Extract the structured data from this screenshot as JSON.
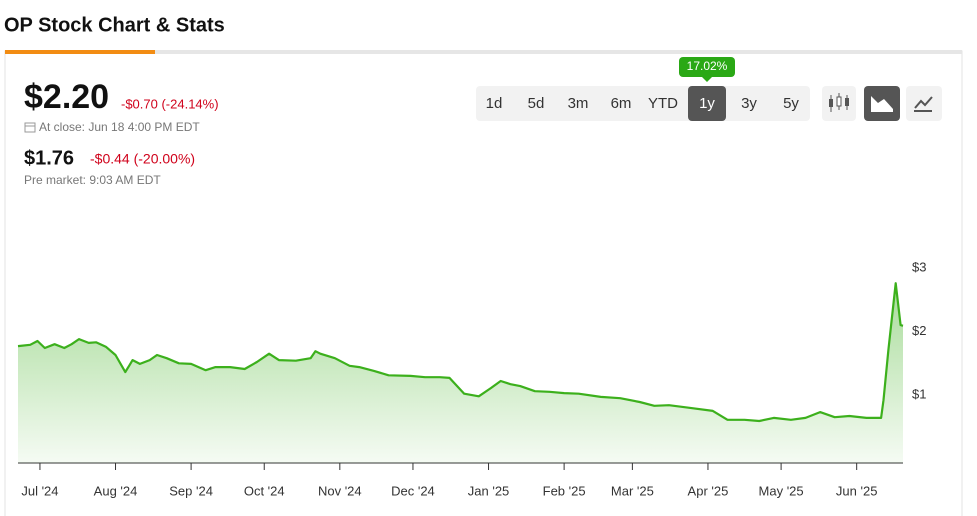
{
  "page": {
    "title": "OP Stock Chart & Stats",
    "price": "$2.20",
    "change": "-$0.70 (-24.14%)",
    "close_label": "At close: Jun 18 4:00 PM EDT",
    "pre_price": "$1.76",
    "pre_change": "-$0.44 (-20.00%)",
    "pre_label": "Pre market: 9:03 AM EDT",
    "ranges": [
      "1d",
      "5d",
      "3m",
      "6m",
      "YTD",
      "1y",
      "3y",
      "5y"
    ],
    "selected_range_index": 5,
    "range_badge": "17.02%"
  },
  "chart_data": {
    "type": "area",
    "color": "#3cb01c",
    "x": [
      -9,
      -4,
      -1,
      2,
      6,
      10,
      13,
      16,
      20,
      23,
      27,
      31,
      35,
      38,
      41,
      45,
      48,
      52,
      57,
      62,
      68,
      72,
      78,
      84,
      89,
      94,
      98,
      105,
      111,
      113,
      115,
      121,
      127,
      131,
      137,
      143,
      152,
      158,
      164,
      168,
      174,
      180,
      185,
      189,
      193,
      197,
      203,
      209,
      215,
      221,
      230,
      238,
      246,
      252,
      258,
      266,
      276,
      282,
      289,
      295,
      301,
      308,
      314,
      320,
      326,
      332,
      339,
      345,
      346,
      348,
      351,
      353,
      354
    ],
    "values": [
      1.77,
      1.79,
      1.85,
      1.74,
      1.8,
      1.74,
      1.8,
      1.88,
      1.82,
      1.83,
      1.76,
      1.63,
      1.36,
      1.55,
      1.49,
      1.55,
      1.63,
      1.58,
      1.5,
      1.49,
      1.39,
      1.44,
      1.44,
      1.41,
      1.52,
      1.65,
      1.55,
      1.54,
      1.58,
      1.69,
      1.65,
      1.58,
      1.46,
      1.44,
      1.38,
      1.31,
      1.3,
      1.28,
      1.28,
      1.27,
      1.02,
      0.98,
      1.11,
      1.22,
      1.17,
      1.14,
      1.06,
      1.05,
      1.03,
      1.02,
      0.97,
      0.95,
      0.89,
      0.83,
      0.84,
      0.8,
      0.75,
      0.61,
      0.61,
      0.59,
      0.64,
      0.61,
      0.64,
      0.73,
      0.65,
      0.67,
      0.64,
      0.64,
      0.92,
      1.71,
      2.76,
      2.1,
      2.09
    ],
    "xlim": [
      -9,
      354
    ],
    "xticks": [
      {
        "value": 0,
        "label": "Jul '24"
      },
      {
        "value": 31,
        "label": "Aug '24"
      },
      {
        "value": 62,
        "label": "Sep '24"
      },
      {
        "value": 92,
        "label": "Oct '24"
      },
      {
        "value": 123,
        "label": "Nov '24"
      },
      {
        "value": 153,
        "label": "Dec '24"
      },
      {
        "value": 184,
        "label": "Jan '25"
      },
      {
        "value": 215,
        "label": "Feb '25"
      },
      {
        "value": 243,
        "label": "Mar '25"
      },
      {
        "value": 274,
        "label": "Apr '25"
      },
      {
        "value": 304,
        "label": "May '25"
      },
      {
        "value": 335,
        "label": "Jun '25"
      }
    ],
    "ylim": [
      0,
      4
    ],
    "yticks": [
      {
        "value": 3,
        "label": "$3"
      },
      {
        "value": 2,
        "label": "$2"
      },
      {
        "value": 1,
        "label": "$1"
      }
    ],
    "grid": false
  }
}
